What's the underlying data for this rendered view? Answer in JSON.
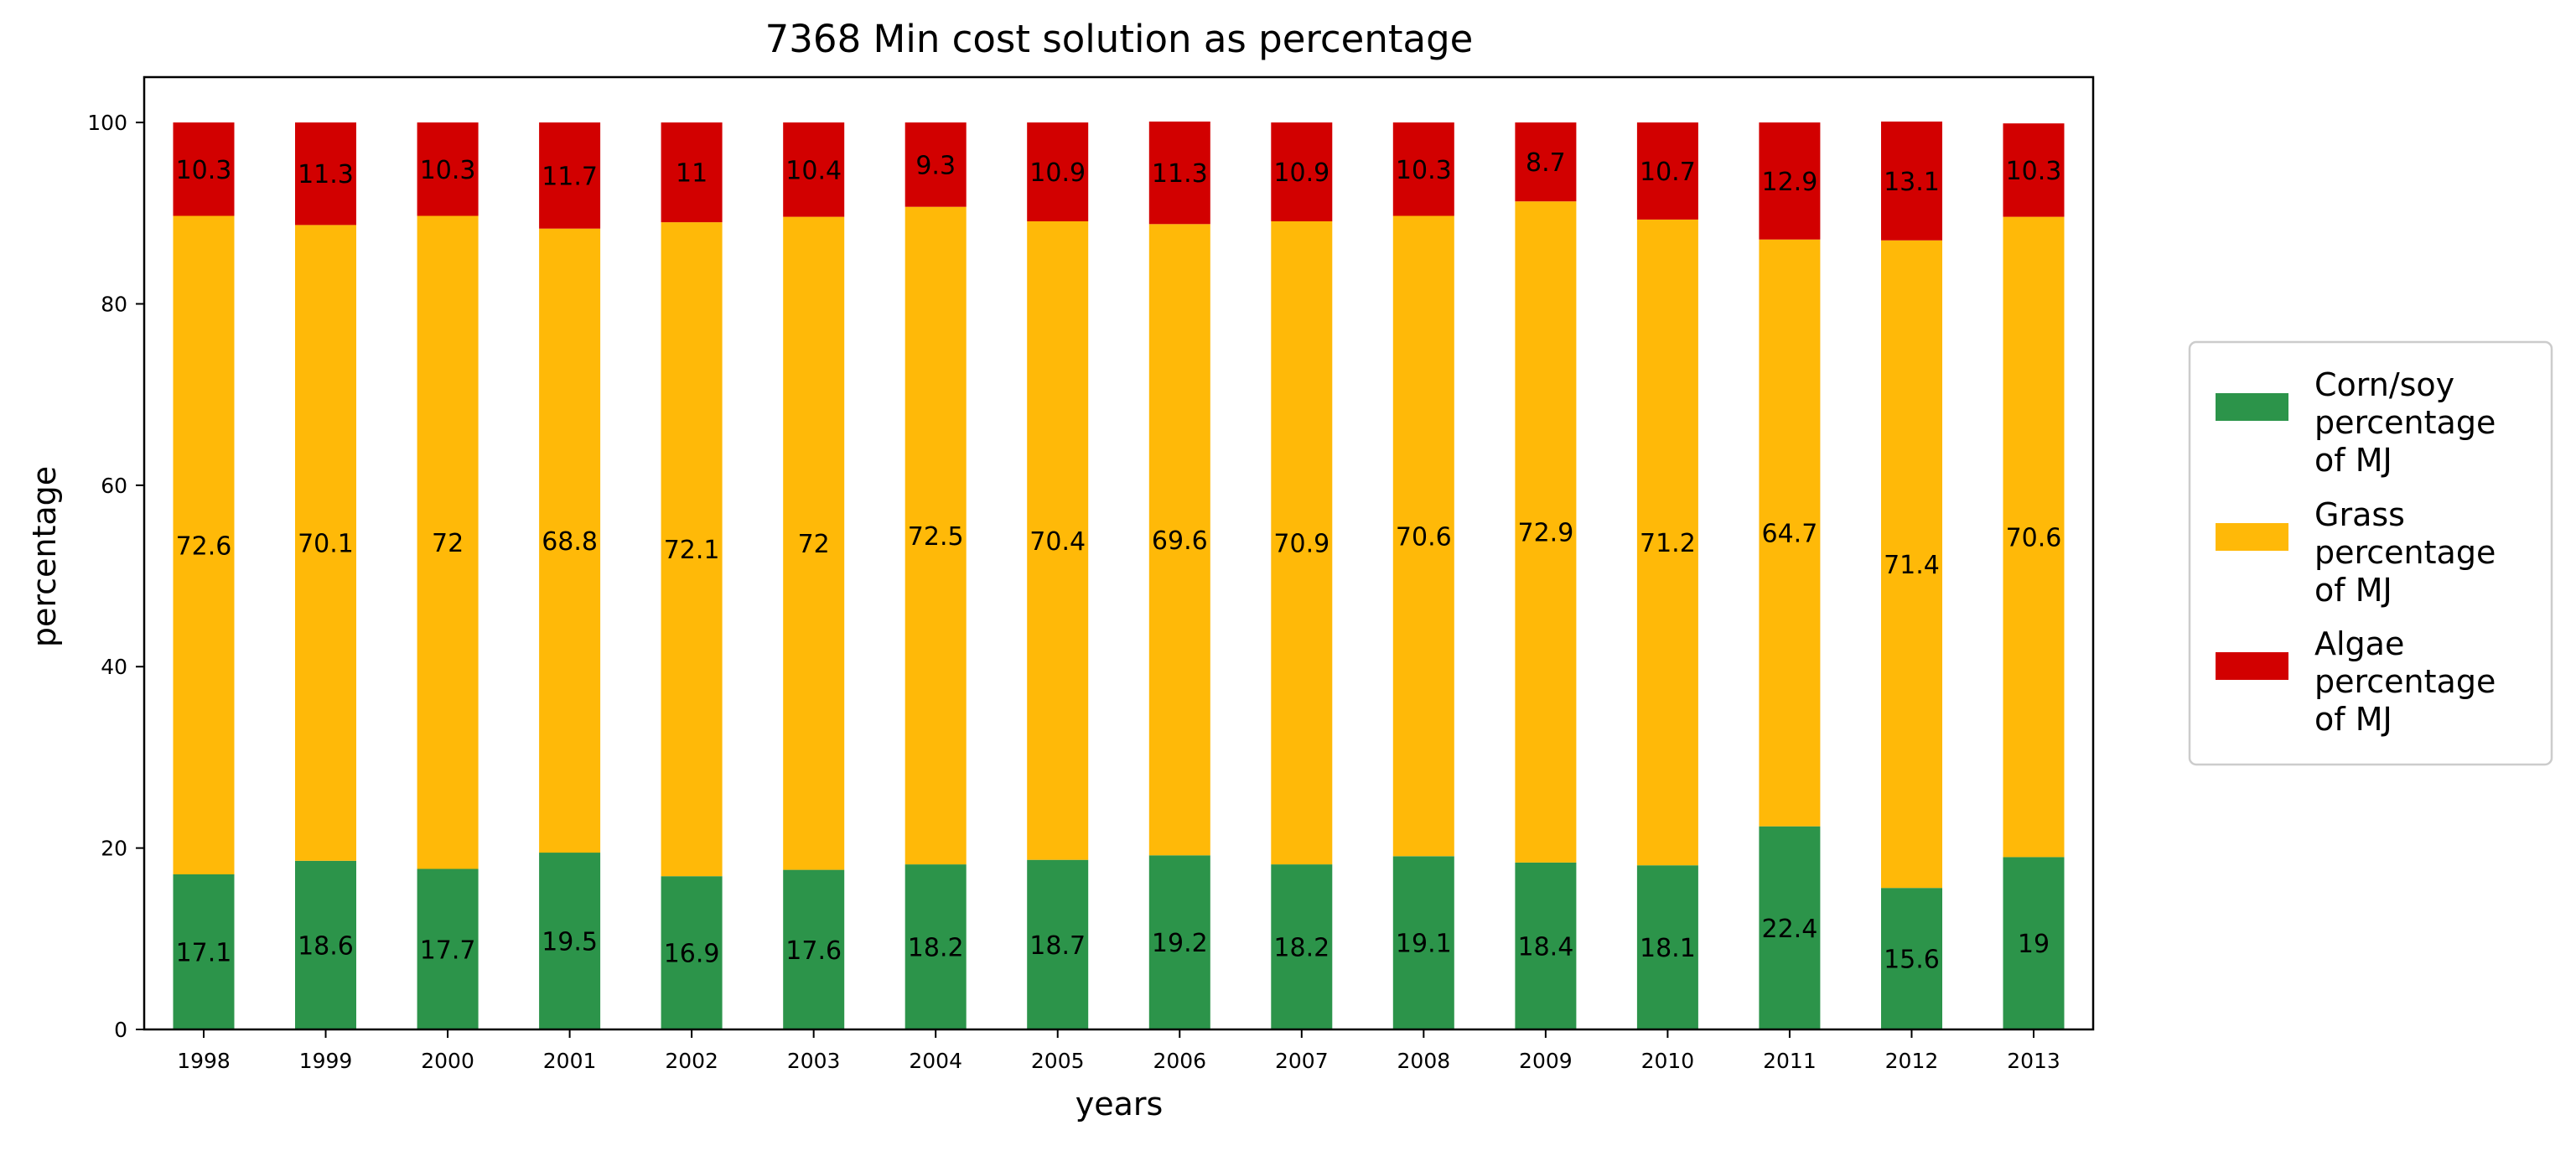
{
  "chart_data": {
    "type": "bar",
    "stacked": true,
    "title": "7368 Min cost solution as percentage",
    "xlabel": "years",
    "ylabel": "percentage",
    "ylim": [
      0,
      105
    ],
    "yticks": [
      0,
      20,
      40,
      60,
      80,
      100
    ],
    "grid": false,
    "legend_position": "right",
    "categories": [
      "1998",
      "1999",
      "2000",
      "2001",
      "2002",
      "2003",
      "2004",
      "2005",
      "2006",
      "2007",
      "2008",
      "2009",
      "2010",
      "2011",
      "2012",
      "2013"
    ],
    "series": [
      {
        "name": "Corn/soy percentage of MJ",
        "legend_lines": [
          "Corn/soy",
          "percentage",
          "of MJ"
        ],
        "color": "#2c944a",
        "values": [
          17.1,
          18.6,
          17.7,
          19.5,
          16.9,
          17.6,
          18.2,
          18.7,
          19.2,
          18.2,
          19.1,
          18.4,
          18.1,
          22.4,
          15.6,
          19
        ],
        "labels": [
          "17.1",
          "18.6",
          "17.7",
          "19.5",
          "16.9",
          "17.6",
          "18.2",
          "18.7",
          "19.2",
          "18.2",
          "19.1",
          "18.4",
          "18.1",
          "22.4",
          "15.6",
          "19"
        ]
      },
      {
        "name": "Grass percentage of MJ",
        "legend_lines": [
          "Grass",
          "percentage",
          "of MJ"
        ],
        "color": "#ffb908",
        "values": [
          72.6,
          70.1,
          72,
          68.8,
          72.1,
          72,
          72.5,
          70.4,
          69.6,
          70.9,
          70.6,
          72.9,
          71.2,
          64.7,
          71.4,
          70.6
        ],
        "labels": [
          "72.6",
          "70.1",
          "72",
          "68.8",
          "72.1",
          "72",
          "72.5",
          "70.4",
          "69.6",
          "70.9",
          "70.6",
          "72.9",
          "71.2",
          "64.7",
          "71.4",
          "70.6"
        ]
      },
      {
        "name": "Algae percentage of MJ",
        "legend_lines": [
          "Algae",
          "percentage",
          "of MJ"
        ],
        "color": "#d20000",
        "values": [
          10.3,
          11.3,
          10.3,
          11.7,
          11,
          10.4,
          9.3,
          10.9,
          11.3,
          10.9,
          10.3,
          8.7,
          10.7,
          12.9,
          13.1,
          10.3
        ],
        "labels": [
          "10.3",
          "11.3",
          "10.3",
          "11.7",
          "11",
          "10.4",
          "9.3",
          "10.9",
          "11.3",
          "10.9",
          "10.3",
          "8.7",
          "10.7",
          "12.9",
          "13.1",
          "10.3"
        ]
      }
    ]
  }
}
